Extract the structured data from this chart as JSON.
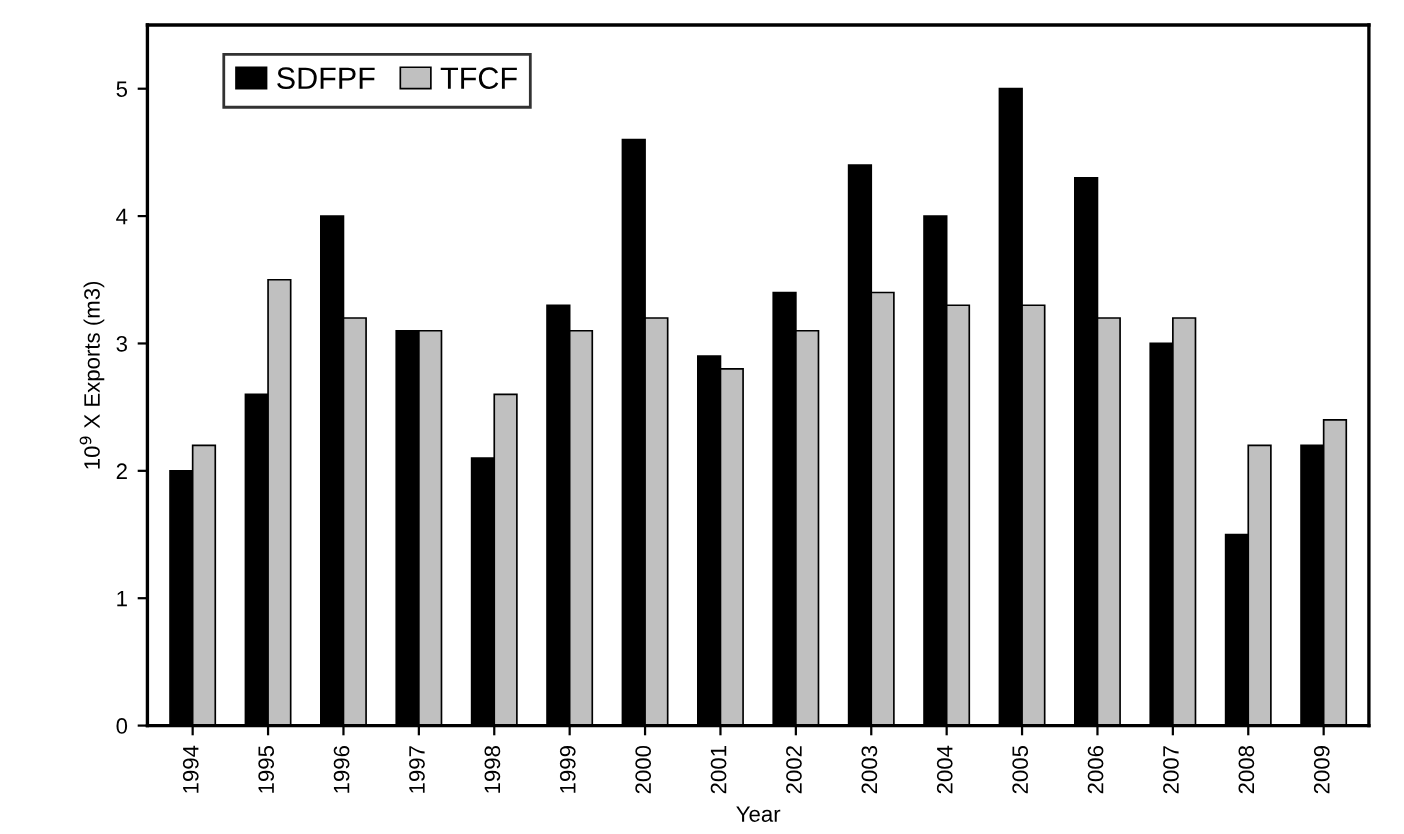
{
  "chart_data": {
    "type": "bar",
    "xlabel": "Year",
    "ylabel": "10$^{9}$ X Exports (m3)",
    "categories": [
      "1994",
      "1995",
      "1996",
      "1997",
      "1998",
      "1999",
      "2000",
      "2001",
      "2002",
      "2003",
      "2004",
      "2005",
      "2006",
      "2007",
      "2008",
      "2009"
    ],
    "series": [
      {
        "name": "SDFPF",
        "color": "#000000",
        "values": [
          2.0,
          2.6,
          4.0,
          3.1,
          2.1,
          3.3,
          4.6,
          2.9,
          3.4,
          4.4,
          4.0,
          5.0,
          4.3,
          3.0,
          1.5,
          2.2
        ]
      },
      {
        "name": "TFCF",
        "color": "#c0c0c0",
        "values": [
          2.2,
          3.5,
          3.2,
          3.1,
          2.6,
          3.1,
          3.2,
          2.8,
          3.1,
          3.4,
          3.3,
          3.3,
          3.2,
          3.2,
          2.2,
          2.4
        ]
      }
    ],
    "ylim": [
      0,
      5.5
    ],
    "yticks": [
      0,
      1,
      2,
      3,
      4,
      5
    ],
    "grid": false,
    "legend": "top left"
  }
}
